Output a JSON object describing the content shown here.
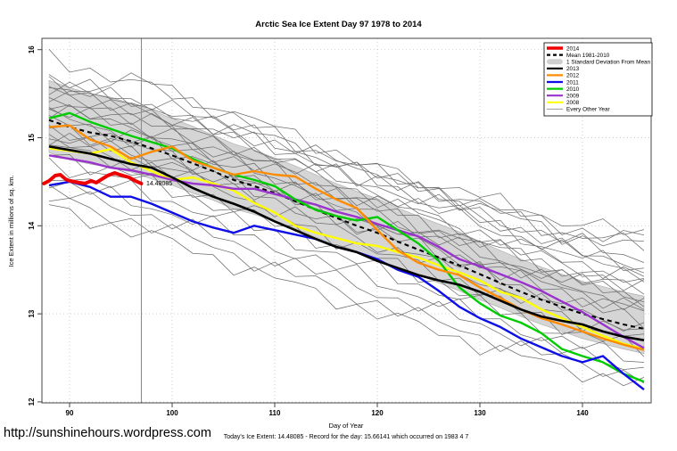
{
  "title": "Arctic Sea Ice Extent Day 97 1978 to 2014",
  "footer": {
    "url": "http://sunshinehours.wordpress.com",
    "caption": "Today's Ice Extent: 14.48085  - Record for the day: 15.66141 which occurred on 1983 4 7"
  },
  "chart_data": {
    "type": "line",
    "title": "Arctic Sea Ice Extent Day 97 1978 to 2014",
    "xlabel": "Day of Year",
    "ylabel": "Ice Extent in millions of sq. km.",
    "xlim": [
      87.3,
      146.7
    ],
    "ylim": [
      12.0,
      16.1
    ],
    "xticks": [
      90,
      100,
      110,
      120,
      130,
      140
    ],
    "yticks": [
      12,
      13,
      14,
      15,
      16
    ],
    "grid": true,
    "vline_day": 97,
    "annotation": {
      "text": "14.48085",
      "day": 97.3,
      "value": 14.46,
      "color": "#C03028"
    },
    "legend": {
      "position": "top-right",
      "entries": [
        {
          "label": "2014",
          "color": "#EE0000",
          "type": "line-thick"
        },
        {
          "label": "Mean 1981-2010",
          "color": "#000000",
          "type": "line-dashed"
        },
        {
          "label": "1 Standard Deviation From Mean",
          "color": "#CFCFCF",
          "type": "band"
        },
        {
          "label": "2013",
          "color": "#000000",
          "type": "line"
        },
        {
          "label": "2012",
          "color": "#FF8C00",
          "type": "line"
        },
        {
          "label": "2011",
          "color": "#0E0EE8",
          "type": "line"
        },
        {
          "label": "2010",
          "color": "#00CC00",
          "type": "line"
        },
        {
          "label": "2009",
          "color": "#9933CC",
          "type": "line"
        },
        {
          "label": "2008",
          "color": "#FFFF00",
          "type": "line"
        },
        {
          "label": "Every Other Year",
          "color": "#999999",
          "type": "line-thin"
        }
      ]
    },
    "x_grid": [
      88,
      90,
      92,
      94,
      96,
      98,
      100,
      102,
      104,
      106,
      108,
      110,
      112,
      114,
      116,
      118,
      120,
      122,
      124,
      126,
      128,
      130,
      132,
      134,
      136,
      138,
      140,
      142,
      144,
      146
    ],
    "band": {
      "name": "1 Standard Deviation From Mean",
      "fill": "#D5D5D5",
      "edge": "#A9A9A9",
      "upper": [
        15.65,
        15.57,
        15.5,
        15.46,
        15.39,
        15.31,
        15.22,
        15.13,
        15.03,
        14.93,
        14.86,
        14.77,
        14.68,
        14.58,
        14.48,
        14.39,
        14.31,
        14.2,
        14.11,
        14.02,
        13.93,
        13.82,
        13.72,
        13.62,
        13.53,
        13.45,
        13.37,
        13.31,
        13.25,
        13.2
      ],
      "lower": [
        14.83,
        14.75,
        14.7,
        14.66,
        14.61,
        14.53,
        14.46,
        14.37,
        14.29,
        14.19,
        14.13,
        14.05,
        13.97,
        13.87,
        13.78,
        13.7,
        13.62,
        13.52,
        13.44,
        13.35,
        13.26,
        13.16,
        13.07,
        12.97,
        12.88,
        12.8,
        12.72,
        12.66,
        12.6,
        12.55
      ]
    },
    "series": [
      {
        "name": "Mean 1981-2010",
        "color": "#000000",
        "width": 2.1,
        "dash": "5,4",
        "y": [
          15.2,
          15.12,
          15.06,
          15.02,
          14.96,
          14.88,
          14.8,
          14.71,
          14.62,
          14.52,
          14.45,
          14.37,
          14.28,
          14.18,
          14.09,
          14.0,
          13.92,
          13.82,
          13.73,
          13.64,
          13.55,
          13.45,
          13.35,
          13.25,
          13.16,
          13.08,
          13.0,
          12.94,
          12.88,
          12.83
        ]
      },
      {
        "name": "2008",
        "color": "#FFFF00",
        "width": 2.4,
        "y": [
          14.88,
          14.85,
          14.82,
          14.87,
          14.72,
          14.62,
          14.52,
          14.55,
          14.48,
          14.4,
          14.26,
          14.15,
          14.0,
          13.92,
          13.86,
          13.8,
          13.77,
          13.7,
          13.64,
          13.55,
          13.47,
          13.38,
          13.25,
          13.18,
          13.05,
          12.95,
          12.85,
          12.75,
          12.66,
          12.6
        ]
      },
      {
        "name": "2009",
        "color": "#9933CC",
        "width": 2.4,
        "y": [
          14.8,
          14.76,
          14.72,
          14.66,
          14.63,
          14.58,
          14.52,
          14.48,
          14.46,
          14.42,
          14.42,
          14.36,
          14.3,
          14.24,
          14.16,
          14.1,
          14.02,
          13.95,
          13.88,
          13.76,
          13.62,
          13.54,
          13.45,
          13.36,
          13.26,
          13.14,
          13.02,
          12.88,
          12.74,
          12.61
        ]
      },
      {
        "name": "2010",
        "color": "#00CC00",
        "width": 2.4,
        "y": [
          15.22,
          15.28,
          15.18,
          15.1,
          15.02,
          14.95,
          14.88,
          14.76,
          14.66,
          14.58,
          14.52,
          14.45,
          14.3,
          14.18,
          14.11,
          14.06,
          14.1,
          13.95,
          13.8,
          13.6,
          13.3,
          13.12,
          12.98,
          12.9,
          12.78,
          12.6,
          12.52,
          12.45,
          12.32,
          12.23
        ]
      },
      {
        "name": "2011",
        "color": "#0E0EE8",
        "width": 2.4,
        "y": [
          14.46,
          14.5,
          14.44,
          14.33,
          14.33,
          14.25,
          14.15,
          14.05,
          13.98,
          13.92,
          14.0,
          13.95,
          13.9,
          13.85,
          13.76,
          13.7,
          13.62,
          13.5,
          13.42,
          13.26,
          13.08,
          12.95,
          12.85,
          12.72,
          12.62,
          12.52,
          12.45,
          12.52,
          12.32,
          12.14
        ]
      },
      {
        "name": "2012",
        "color": "#FF8C00",
        "width": 2.4,
        "y": [
          15.12,
          15.14,
          14.98,
          14.9,
          14.76,
          14.84,
          14.9,
          14.74,
          14.66,
          14.58,
          14.62,
          14.58,
          14.56,
          14.42,
          14.3,
          14.2,
          13.95,
          13.72,
          13.58,
          13.5,
          13.44,
          13.3,
          13.18,
          13.05,
          12.95,
          12.88,
          12.8,
          12.72,
          12.65,
          12.59
        ]
      },
      {
        "name": "2013",
        "color": "#000000",
        "width": 2.6,
        "y": [
          14.9,
          14.86,
          14.82,
          14.76,
          14.7,
          14.66,
          14.55,
          14.43,
          14.33,
          14.25,
          14.16,
          14.05,
          13.95,
          13.85,
          13.76,
          13.7,
          13.6,
          13.52,
          13.44,
          13.38,
          13.33,
          13.25,
          13.15,
          13.05,
          12.97,
          12.92,
          12.88,
          12.8,
          12.74,
          12.7
        ]
      }
    ],
    "series_2014": {
      "name": "2014",
      "color": "#EE0000",
      "width": 4,
      "x": [
        87.5,
        88,
        88.6,
        89.1,
        89.6,
        90,
        90.9,
        91.5,
        92.1,
        92.6,
        93.7,
        94.4,
        94.9,
        95.8,
        96.4,
        97
      ],
      "y": [
        14.48,
        14.51,
        14.57,
        14.58,
        14.53,
        14.51,
        14.49,
        14.48,
        14.51,
        14.49,
        14.57,
        14.6,
        14.58,
        14.55,
        14.51,
        14.48
      ]
    },
    "background_series": {
      "name": "Every Other Year",
      "color": "#6F6F6F",
      "width": 0.75,
      "anchor_days": [
        88,
        98,
        108,
        118,
        128,
        138,
        146
      ],
      "lines": [
        [
          15.92,
          15.55,
          15.2,
          14.75,
          14.3,
          13.9,
          13.75
        ],
        [
          15.5,
          15.66,
          15.12,
          14.68,
          14.3,
          13.92,
          13.78
        ],
        [
          15.6,
          15.35,
          15.05,
          14.6,
          14.15,
          13.7,
          13.5
        ],
        [
          15.7,
          15.3,
          14.9,
          14.5,
          14.2,
          13.85,
          13.62
        ],
        [
          15.55,
          15.42,
          15.0,
          14.68,
          14.22,
          13.75,
          13.45
        ],
        [
          15.5,
          15.2,
          14.85,
          14.4,
          13.95,
          13.55,
          13.3
        ],
        [
          15.62,
          15.28,
          15.08,
          14.55,
          14.35,
          13.98,
          13.85
        ],
        [
          15.4,
          15.15,
          14.72,
          14.3,
          13.9,
          13.48,
          13.25
        ],
        [
          15.45,
          15.25,
          14.95,
          14.62,
          14.4,
          14.05,
          13.9
        ],
        [
          15.35,
          15.05,
          14.65,
          14.22,
          13.8,
          13.4,
          13.15
        ],
        [
          15.3,
          15.1,
          14.8,
          14.45,
          14.1,
          13.72,
          13.55
        ],
        [
          15.25,
          14.95,
          14.55,
          14.15,
          13.72,
          13.32,
          13.1
        ],
        [
          15.2,
          15.0,
          14.7,
          14.35,
          14.0,
          13.62,
          13.42
        ],
        [
          15.15,
          14.85,
          14.45,
          14.05,
          13.65,
          13.25,
          13.02
        ],
        [
          15.1,
          14.92,
          14.6,
          14.25,
          13.88,
          13.52,
          13.32
        ],
        [
          15.05,
          14.75,
          14.38,
          13.95,
          13.55,
          13.15,
          12.92
        ],
        [
          15.0,
          14.8,
          14.5,
          14.12,
          13.75,
          13.4,
          13.2
        ],
        [
          14.95,
          14.68,
          14.28,
          13.88,
          13.45,
          13.05,
          12.85
        ],
        [
          14.9,
          14.7,
          14.4,
          14.02,
          13.62,
          13.28,
          13.08
        ],
        [
          14.8,
          14.55,
          14.18,
          13.78,
          13.38,
          12.98,
          12.78
        ],
        [
          14.7,
          14.48,
          14.1,
          13.7,
          13.28,
          12.88,
          12.68
        ],
        [
          14.6,
          14.35,
          13.98,
          13.58,
          13.18,
          12.8,
          12.6
        ],
        [
          14.5,
          14.22,
          13.85,
          13.45,
          13.05,
          12.68,
          12.48
        ],
        [
          14.4,
          14.12,
          13.72,
          13.32,
          12.95,
          12.58,
          12.38
        ],
        [
          14.3,
          14.0,
          13.6,
          13.2,
          12.82,
          12.48,
          12.28
        ],
        [
          14.2,
          13.88,
          13.48,
          13.08,
          12.72,
          12.38,
          12.2
        ]
      ]
    }
  }
}
